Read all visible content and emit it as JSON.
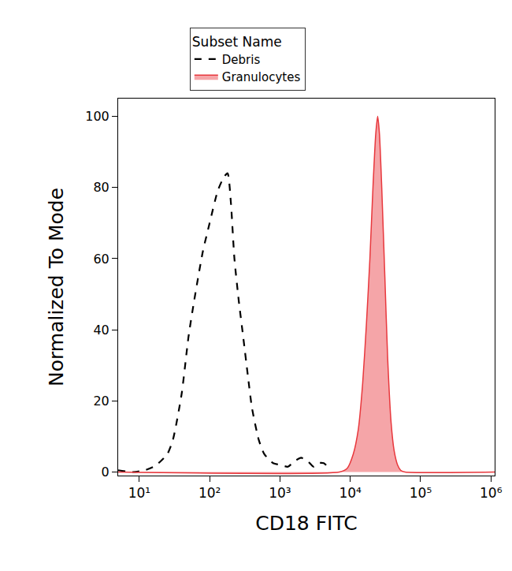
{
  "chart_data": {
    "type": "line",
    "x_label": "CD18 FITC",
    "y_label": "Normalized To Mode",
    "legend_title": "Subset Name",
    "legend": "top",
    "log": "x",
    "grid": false,
    "xlim": [
      5,
      1130000
    ],
    "xticks": [
      {
        "value": 10,
        "label": "10¹"
      },
      {
        "value": 100,
        "label": "10²"
      },
      {
        "value": 1000,
        "label": "10³"
      },
      {
        "value": 10000,
        "label": "10⁴"
      },
      {
        "value": 100000,
        "label": "10⁵"
      },
      {
        "value": 1000000,
        "label": "10⁶"
      }
    ],
    "ylim": [
      -1,
      105
    ],
    "yticks": [
      0,
      20,
      40,
      60,
      80,
      100
    ],
    "series": [
      {
        "name": "Debris",
        "type": "line",
        "color": "#000000",
        "line_style": "dashed",
        "x": [
          5,
          8,
          12,
          16,
          20,
          25,
          30,
          40,
          50,
          60,
          80,
          100,
          130,
          160,
          180,
          200,
          225,
          260,
          300,
          350,
          400,
          500,
          600,
          800,
          1000,
          1300,
          1600,
          2000,
          2500,
          3000,
          3500,
          4200,
          5000
        ],
        "values": [
          0.5,
          0,
          0.5,
          1.5,
          3,
          5,
          9,
          22,
          38,
          48,
          62,
          70,
          79,
          83,
          84,
          76,
          60,
          48,
          38,
          27,
          18,
          9,
          5,
          2.5,
          2,
          1.5,
          3,
          4,
          3,
          1.5,
          2.5,
          2.5,
          1
        ]
      },
      {
        "name": "Granulocytes",
        "type": "area",
        "color": "#e8383d",
        "line_style": "solid",
        "x": [
          5,
          7000,
          9000,
          11000,
          13000,
          15000,
          17000,
          19000,
          21000,
          23000,
          24500,
          26000,
          28000,
          31000,
          34000,
          38000,
          42000,
          47000,
          52000,
          60000,
          1130000
        ],
        "values": [
          0,
          0,
          1,
          5,
          12,
          25,
          42,
          60,
          80,
          95,
          100,
          95,
          80,
          55,
          32,
          14,
          6,
          2,
          0.5,
          0,
          0
        ]
      }
    ]
  }
}
